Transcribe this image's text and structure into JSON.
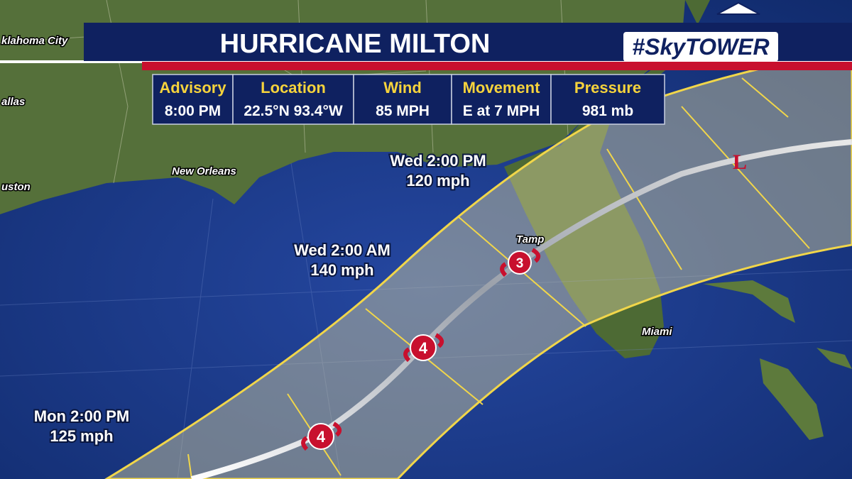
{
  "header": {
    "title": "HURRICANE MILTON",
    "logo": "#SkyTOWER"
  },
  "advisory": {
    "columns": [
      {
        "label": "Advisory",
        "value": "8:00 PM"
      },
      {
        "label": "Location",
        "value": "22.5°N  93.4°W"
      },
      {
        "label": "Wind",
        "value": "85 MPH"
      },
      {
        "label": "Movement",
        "value": "E at 7 MPH"
      },
      {
        "label": "Pressure",
        "value": "981 mb"
      }
    ]
  },
  "map": {
    "cities": [
      "klahoma City",
      "allas",
      "uston",
      "New Orleans",
      "Tamp",
      "Miami"
    ],
    "forecast_labels": [
      {
        "time": "Wed 2:00 PM",
        "wind": "120 mph"
      },
      {
        "time": "Wed 2:00 AM",
        "wind": "140 mph"
      },
      {
        "time": "Mon 2:00 PM",
        "wind": "125 mph"
      }
    ],
    "storm_icons": [
      "4",
      "4",
      "3"
    ],
    "low_marker": "L"
  }
}
